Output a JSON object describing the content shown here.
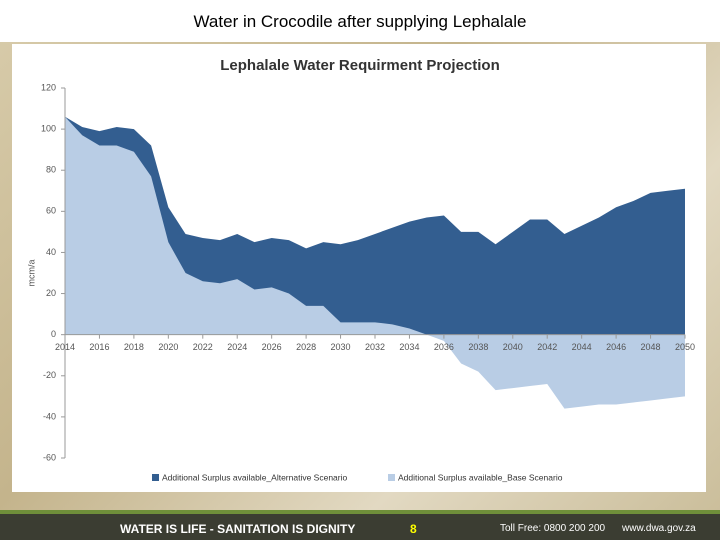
{
  "slide": {
    "title": "Water in Crocodile after supplying Lephalale",
    "footer": {
      "motto": "WATER IS LIFE - SANITATION IS DIGNITY",
      "page": "8",
      "phone": "Toll Free: 0800 200 200",
      "web": "www.dwa.gov.za"
    }
  },
  "chart_data": {
    "type": "area",
    "title": "Lephalale Water Requirment Projection",
    "y_label": "mcm/a",
    "x": [
      2014,
      2015,
      2016,
      2017,
      2018,
      2019,
      2020,
      2021,
      2022,
      2023,
      2024,
      2025,
      2026,
      2027,
      2028,
      2029,
      2030,
      2031,
      2032,
      2033,
      2034,
      2035,
      2036,
      2037,
      2038,
      2039,
      2040,
      2041,
      2042,
      2043,
      2044,
      2045,
      2046,
      2047,
      2048,
      2049,
      2050
    ],
    "xlim": [
      2014,
      2050
    ],
    "xticks": [
      2014,
      2016,
      2018,
      2020,
      2022,
      2024,
      2026,
      2028,
      2030,
      2032,
      2034,
      2036,
      2038,
      2040,
      2042,
      2044,
      2046,
      2048,
      2050
    ],
    "ylim": [
      -60,
      120
    ],
    "yticks": [
      -60,
      -40,
      -20,
      0,
      20,
      40,
      60,
      80,
      100,
      120
    ],
    "legend": "bottom",
    "series": [
      {
        "name": "Additional Surplus available_Alternative Scenario",
        "color": "#335e90",
        "values": [
          106,
          101,
          99,
          101,
          100,
          92,
          62,
          49,
          47,
          46,
          49,
          45,
          47,
          46,
          42,
          45,
          44,
          46,
          49,
          52,
          55,
          57,
          58,
          50,
          50,
          44,
          50,
          56,
          56,
          49,
          53,
          57,
          62,
          65,
          69,
          70,
          71
        ]
      },
      {
        "name": "Additional Surplus available_Base Scenario",
        "color": "#b9cde5",
        "values": [
          106,
          97,
          92,
          92,
          89,
          77,
          45,
          30,
          26,
          25,
          27,
          22,
          23,
          20,
          14,
          14,
          6,
          6,
          6,
          5,
          3,
          0,
          -3,
          -14,
          -18,
          -27,
          -26,
          -25,
          -24,
          -36,
          -35,
          -34,
          -34,
          -33,
          -32,
          -31,
          -30
        ]
      }
    ]
  }
}
